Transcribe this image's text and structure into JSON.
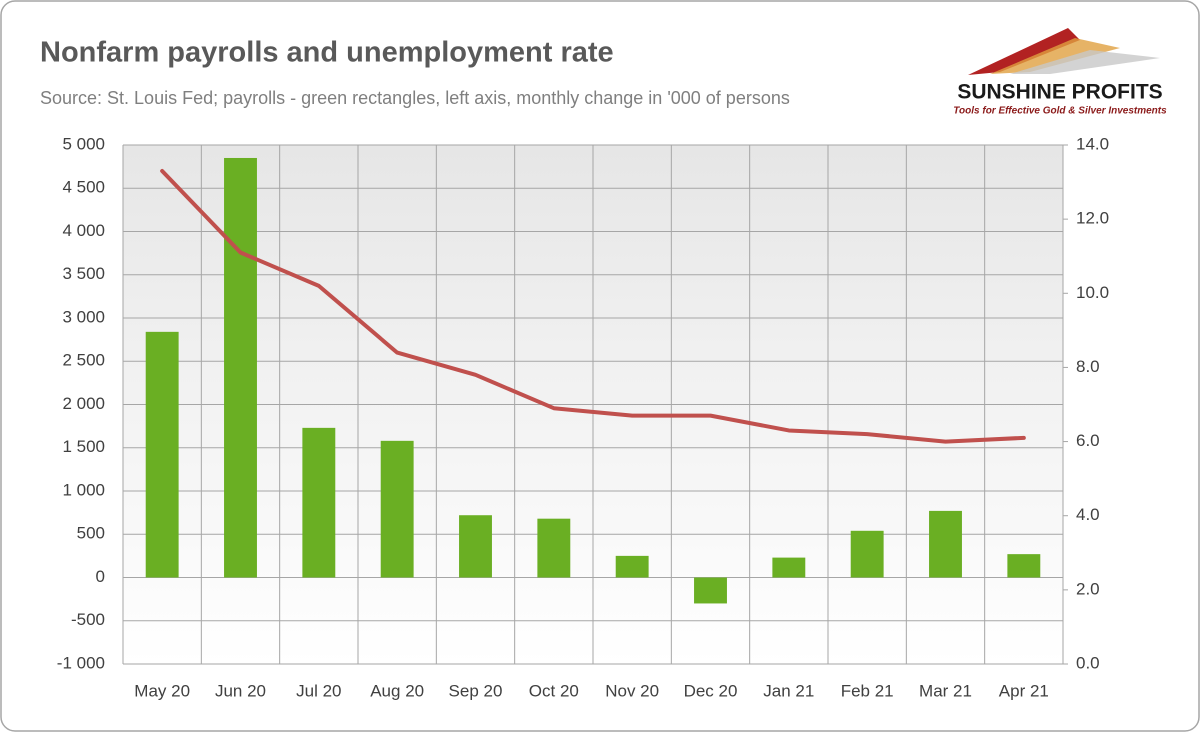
{
  "chart_data": {
    "type": "combo",
    "title": "Nonfarm payrolls and unemployment rate",
    "subtitle": "Source: St. Louis Fed; payrolls - green rectangles, left axis, monthly change in '000 of persons",
    "categories": [
      "May 20",
      "Jun 20",
      "Jul 20",
      "Aug 20",
      "Sep 20",
      "Oct 20",
      "Nov 20",
      "Dec 20",
      "Jan 21",
      "Feb 21",
      "Mar 21",
      "Apr 21"
    ],
    "series": [
      {
        "type": "bar",
        "color": "#6aaf23",
        "values": [
          2840,
          4850,
          1730,
          1580,
          720,
          680,
          250,
          -300,
          230,
          540,
          770,
          270
        ]
      },
      {
        "type": "line",
        "axis": "y2",
        "color": "#c0504d",
        "values": [
          13.3,
          11.1,
          10.2,
          8.4,
          7.8,
          6.9,
          6.7,
          6.7,
          6.3,
          6.2,
          6.0,
          6.1
        ]
      }
    ],
    "ylim": [
      -1000,
      5000
    ],
    "yticks": [
      {
        "value": -1000,
        "label": "-1 000"
      },
      -500,
      0,
      500,
      {
        "value": 1000,
        "label": "1 000"
      },
      {
        "value": 1500,
        "label": "1 500"
      },
      {
        "value": 2000,
        "label": "2 000"
      },
      {
        "value": 2500,
        "label": "2 500"
      },
      {
        "value": 3000,
        "label": "3 000"
      },
      {
        "value": 3500,
        "label": "3 500"
      },
      {
        "value": 4000,
        "label": "4 000"
      },
      {
        "value": 4500,
        "label": "4 500"
      },
      {
        "value": 5000,
        "label": "5 000"
      }
    ],
    "y2lim": [
      0,
      14
    ],
    "y2ticks": [
      {
        "value": 0,
        "label": "0.0"
      },
      {
        "value": 2,
        "label": "2.0"
      },
      {
        "value": 4,
        "label": "4.0"
      },
      {
        "value": 6,
        "label": "6.0"
      },
      {
        "value": 8,
        "label": "8.0"
      },
      {
        "value": 10,
        "label": "10.0"
      },
      {
        "value": 12,
        "label": "12.0"
      },
      {
        "value": 14,
        "label": "14.0"
      }
    ],
    "grid": true
  },
  "logo": {
    "name": "SUNSHINE PROFITS",
    "tagline": "Tools for Effective Gold & Silver Investments"
  }
}
